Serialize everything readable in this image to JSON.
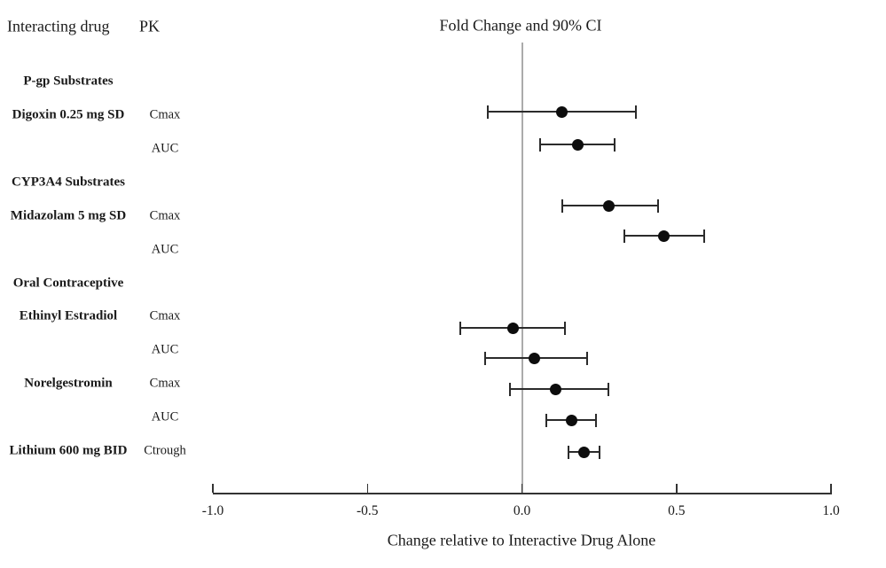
{
  "columns": {
    "drug": "Interacting drug",
    "pk": "PK",
    "plot": "Fold Change and 90% CI"
  },
  "colors": {
    "background": "#ffffff",
    "text": "#1a1a1a",
    "marker": "#0d0d0d",
    "ci_line": "#2b2b2b",
    "reference_line": "#ababab",
    "axis": "#333333"
  },
  "chart_data": {
    "type": "scatter",
    "subtype": "forest-plot",
    "title": "Fold Change and 90% CI",
    "xlabel": "Change relative to Interactive Drug Alone",
    "xlim": [
      -1.0,
      1.0
    ],
    "grid": false,
    "reference_line_x": 0.0,
    "x_ticks": [
      {
        "value": -1.0,
        "label": "-1.0"
      },
      {
        "value": -0.5,
        "label": "-0.5"
      },
      {
        "value": 0.0,
        "label": "0.0"
      },
      {
        "value": 0.5,
        "label": "0.5"
      },
      {
        "value": 1.0,
        "label": "1.0"
      }
    ],
    "rows": [
      {
        "kind": "group",
        "label": "P-gp Substrates"
      },
      {
        "kind": "measure",
        "drug": "Digoxin 0.25 mg SD",
        "pk": "Cmax",
        "value": 0.13,
        "ci_low": -0.11,
        "ci_high": 0.37
      },
      {
        "kind": "measure",
        "drug": "",
        "pk": "AUC",
        "value": 0.18,
        "ci_low": 0.06,
        "ci_high": 0.3
      },
      {
        "kind": "group",
        "label": "CYP3A4 Substrates"
      },
      {
        "kind": "measure",
        "drug": "Midazolam 5 mg SD",
        "pk": "Cmax",
        "value": 0.28,
        "ci_low": 0.13,
        "ci_high": 0.44
      },
      {
        "kind": "measure",
        "drug": "",
        "pk": "AUC",
        "value": 0.46,
        "ci_low": 0.33,
        "ci_high": 0.59
      },
      {
        "kind": "group",
        "label": "Oral Contraceptive"
      },
      {
        "kind": "measure",
        "drug": "Ethinyl Estradiol",
        "pk": "Cmax",
        "value": -0.03,
        "ci_low": -0.2,
        "ci_high": 0.14
      },
      {
        "kind": "measure",
        "drug": "",
        "pk": "AUC",
        "value": 0.04,
        "ci_low": -0.12,
        "ci_high": 0.21
      },
      {
        "kind": "measure",
        "drug": "Norelgestromin",
        "pk": "Cmax",
        "value": 0.11,
        "ci_low": -0.04,
        "ci_high": 0.28
      },
      {
        "kind": "measure",
        "drug": "",
        "pk": "AUC",
        "value": 0.16,
        "ci_low": 0.08,
        "ci_high": 0.24
      },
      {
        "kind": "measure",
        "drug": "Lithium 600 mg BID",
        "pk": "Ctrough",
        "value": 0.2,
        "ci_low": 0.15,
        "ci_high": 0.25
      }
    ]
  }
}
